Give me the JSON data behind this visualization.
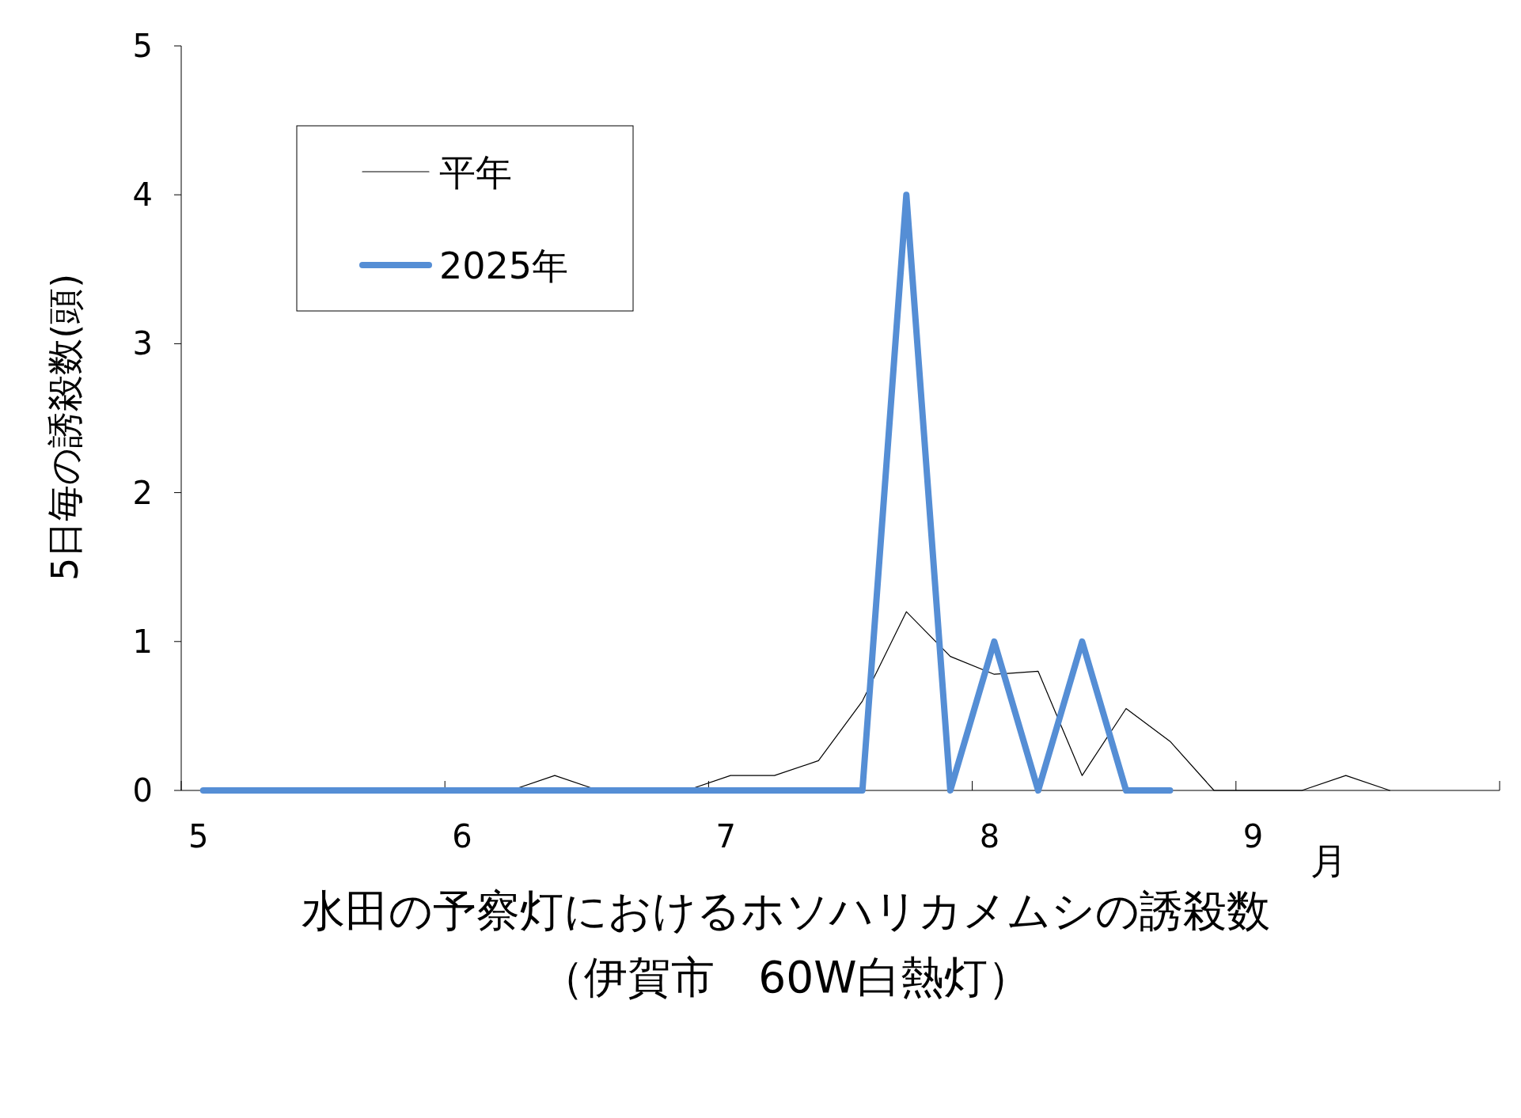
{
  "chart_data": {
    "type": "line",
    "title": "水田の予察灯におけるホソハリカメムシの誘殺数",
    "subtitle": "（伊賀市　60W白熱灯）",
    "ylabel": "5日毎の誘殺数(頭)",
    "annotations": [
      "月"
    ],
    "categories": [
      "5",
      null,
      null,
      null,
      null,
      null,
      "6",
      null,
      null,
      null,
      null,
      null,
      "7",
      null,
      null,
      null,
      null,
      null,
      "8",
      null,
      null,
      null,
      null,
      null,
      "9",
      null,
      null,
      null,
      null,
      null
    ],
    "ylim": [
      0,
      5
    ],
    "yticks": [
      0,
      1,
      2,
      3,
      4,
      5
    ],
    "legend": "top left",
    "marker": "none",
    "series": [
      {
        "name": "平年",
        "color": "#000000",
        "values": [
          null,
          null,
          null,
          null,
          null,
          null,
          0,
          0,
          0.1,
          0,
          0,
          0,
          0.1,
          0.1,
          0.2,
          0.6,
          1.2,
          0.9,
          0.78,
          0.8,
          0.1,
          0.55,
          0.33,
          0,
          0,
          0,
          0.1,
          0,
          null,
          null
        ]
      },
      {
        "name": "2025年",
        "color": "#558ed5",
        "values": [
          0,
          0,
          0,
          0,
          0,
          0,
          0,
          0,
          0,
          0,
          0,
          0,
          0,
          0,
          0,
          0,
          4,
          0,
          1,
          0,
          1,
          0,
          0,
          null,
          null,
          null,
          null,
          null,
          null,
          null
        ]
      }
    ]
  }
}
